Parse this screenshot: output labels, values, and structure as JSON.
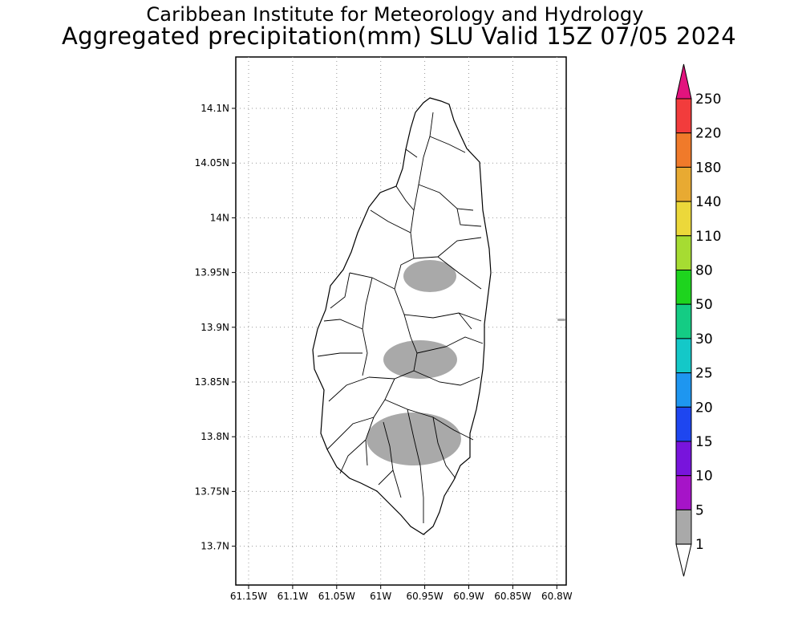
{
  "header": {
    "title": "Caribbean Institute for Meteorology and Hydrology",
    "subtitle": "Aggregated precipitation(mm) SLU Valid 15Z 07/05 2024"
  },
  "map": {
    "lon_ticks": [
      "61.15W",
      "61.1W",
      "61.05W",
      "61W",
      "60.95W",
      "60.9W",
      "60.85W",
      "60.8W"
    ],
    "lat_ticks": [
      "14.1N",
      "14.05N",
      "14N",
      "13.95N",
      "13.9N",
      "13.85N",
      "13.8N",
      "13.75N",
      "13.7N"
    ],
    "land_color": "#ffffff",
    "precip_patch_color": "#a9a9a9"
  },
  "colorbar": {
    "levels": [
      "250",
      "220",
      "180",
      "140",
      "110",
      "80",
      "50",
      "30",
      "25",
      "20",
      "15",
      "10",
      "5",
      "1"
    ],
    "colors": [
      "#e2137e",
      "#f23c3c",
      "#f07a2a",
      "#e8aa32",
      "#ecd83a",
      "#a6dc32",
      "#1ed41e",
      "#14cc84",
      "#14c8c8",
      "#1e96f0",
      "#1e46f0",
      "#7814dc",
      "#a614c8",
      "#a9a9a9",
      "#ffffff"
    ]
  }
}
